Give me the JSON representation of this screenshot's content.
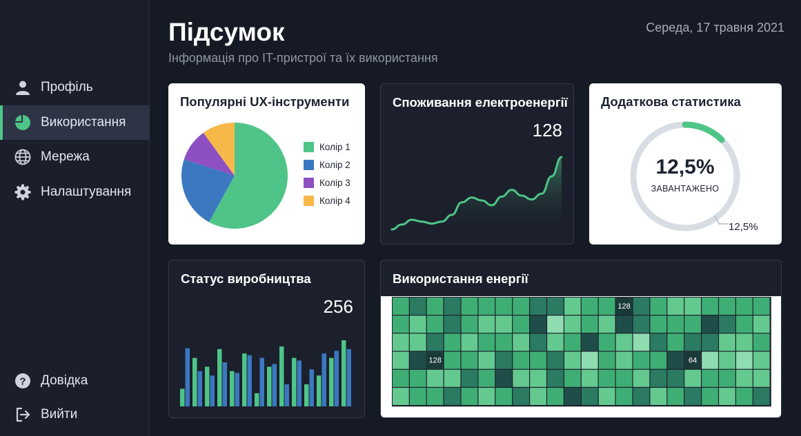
{
  "sidebar": {
    "items": [
      {
        "label": "Профіль",
        "icon": "user-icon"
      },
      {
        "label": "Використання",
        "icon": "pie-chart-icon",
        "active": true
      },
      {
        "label": "Мережа",
        "icon": "globe-icon"
      },
      {
        "label": "Налаштування",
        "icon": "gear-icon"
      }
    ],
    "bottom": [
      {
        "label": "Довідка",
        "icon": "help-icon"
      },
      {
        "label": "Вийти",
        "icon": "logout-icon"
      }
    ]
  },
  "header": {
    "title": "Підсумок",
    "subtitle": "Інформація про IT-пристрої та їх використання",
    "date": "Середа, 17 травня 2021"
  },
  "colors": {
    "accent": "#4fc488",
    "blue": "#3b78c0",
    "purple": "#8e4fc1",
    "yellow": "#f7b84a"
  },
  "cards": {
    "ux_tools": {
      "title": "Популярні UX-інструменти"
    },
    "energy_consumption": {
      "title": "Споживання електроенергії",
      "value": "128"
    },
    "extra_stats": {
      "title": "Додаткова статистика",
      "percent": "12,5%",
      "label": "ЗАВАНТАЖЕНО",
      "small_value": "12,5%"
    },
    "production": {
      "title": "Статус виробництва",
      "value": "256"
    },
    "energy_usage": {
      "title": "Використання енергії"
    }
  },
  "chart_data": [
    {
      "type": "pie",
      "categories": [
        "Колір 1",
        "Колір 2",
        "Колір 3",
        "Колір 4"
      ],
      "values": [
        58,
        22,
        10,
        10
      ],
      "colors": [
        "#4fc488",
        "#3b78c0",
        "#8e4fc1",
        "#f7b84a"
      ],
      "legend": "right"
    },
    {
      "type": "area",
      "values": [
        5,
        10,
        15,
        13,
        11,
        13,
        20,
        33,
        38,
        35,
        30,
        39,
        46,
        40,
        36,
        42,
        60,
        80
      ],
      "ylim": [
        0,
        90
      ],
      "color": "#4fc488"
    },
    {
      "type": "pie",
      "values": [
        12.5
      ],
      "max": 100,
      "color": "#4fc488",
      "track_color": "#d8dce3"
    },
    {
      "type": "bar",
      "series": [
        {
          "color": "#4fc488",
          "values": [
            20,
            55,
            45,
            65,
            40,
            60,
            15,
            45,
            68,
            55,
            25,
            35,
            55,
            75
          ]
        },
        {
          "color": "#3b78c0",
          "values": [
            66,
            40,
            35,
            50,
            38,
            58,
            55,
            48,
            25,
            52,
            42,
            60,
            63,
            65
          ]
        }
      ],
      "ylim": [
        0,
        100
      ]
    },
    {
      "type": "heatmap",
      "rows": 6,
      "cols": 22,
      "levels": [
        [
          2,
          3,
          2,
          3,
          2,
          2,
          2,
          2,
          3,
          3,
          1,
          2,
          2,
          4,
          3,
          2,
          1,
          1,
          2,
          2,
          2,
          2
        ],
        [
          2,
          1,
          2,
          3,
          2,
          1,
          1,
          2,
          4,
          0,
          1,
          2,
          1,
          4,
          3,
          2,
          2,
          2,
          4,
          3,
          2,
          1
        ],
        [
          1,
          1,
          3,
          2,
          1,
          2,
          2,
          1,
          3,
          1,
          2,
          4,
          2,
          1,
          0,
          3,
          2,
          3,
          3,
          1,
          1,
          2
        ],
        [
          1,
          4,
          1,
          2,
          2,
          1,
          3,
          2,
          2,
          3,
          1,
          0,
          2,
          1,
          2,
          2,
          4,
          2,
          0,
          1,
          0,
          1
        ],
        [
          2,
          2,
          1,
          1,
          3,
          2,
          4,
          1,
          1,
          3,
          2,
          1,
          2,
          2,
          1,
          3,
          3,
          1,
          2,
          2,
          1,
          1
        ],
        [
          1,
          2,
          2,
          3,
          2,
          1,
          2,
          3,
          1,
          2,
          4,
          3,
          1,
          2,
          3,
          1,
          2,
          3,
          2,
          1,
          2,
          3
        ]
      ],
      "annotations": [
        {
          "row": 0,
          "col": 13,
          "label": "128"
        },
        {
          "row": 3,
          "col": 2,
          "label": "128"
        },
        {
          "row": 3,
          "col": 17,
          "label": "64"
        }
      ],
      "palette": [
        "#8fdcb0",
        "#64c98f",
        "#3fae74",
        "#2b7a62",
        "#1f4e4a"
      ]
    }
  ]
}
